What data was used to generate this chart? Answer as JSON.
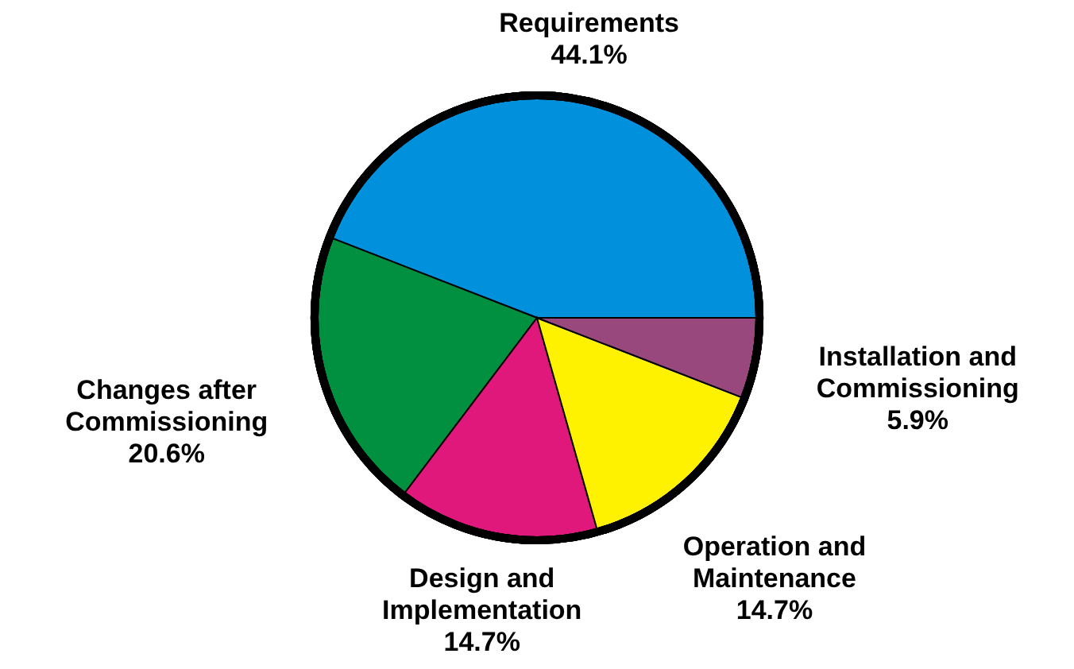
{
  "chart_data": {
    "type": "pie",
    "categories": [
      "Requirements",
      "Changes after Commissioning",
      "Design and Implementation",
      "Operation and Maintenance",
      "Installation and Commissioning"
    ],
    "values": [
      44.1,
      20.6,
      14.7,
      14.7,
      5.9
    ],
    "value_labels": [
      "44.1%",
      "20.6%",
      "14.7%",
      "14.7%",
      "5.9%"
    ],
    "colors": [
      "#0090dc",
      "#009040",
      "#e0187c",
      "#fff200",
      "#98487c"
    ]
  }
}
